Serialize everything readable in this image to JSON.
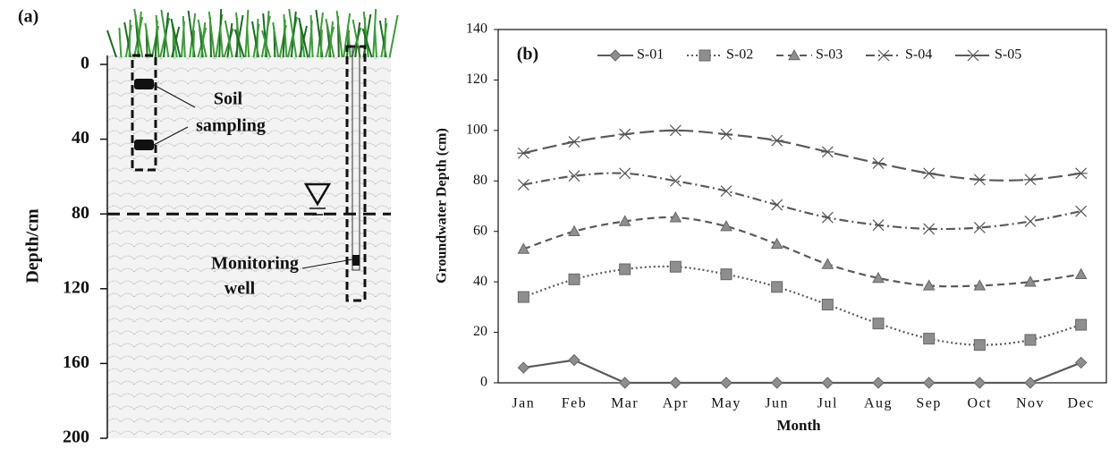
{
  "chart_data": [
    {
      "type": "diagram",
      "label": "(a)",
      "ylabel": "Depth/cm",
      "ylim": [
        0,
        200
      ],
      "inverted": true,
      "yticks": [
        0,
        40,
        80,
        120,
        160,
        200
      ],
      "water_table": 80,
      "annotations": [
        "Soil",
        "sampling",
        "Monitoring",
        "well"
      ]
    },
    {
      "type": "line",
      "label": "(b)",
      "xlabel": "Month",
      "ylabel": "Groundwater Depth (cm)",
      "categories": [
        "Jan",
        "Feb",
        "Mar",
        "Apr",
        "May",
        "Jun",
        "Jul",
        "Aug",
        "Sep",
        "Oct",
        "Nov",
        "Dec"
      ],
      "ylim": [
        0,
        140
      ],
      "yticks": [
        0,
        20,
        40,
        60,
        80,
        100,
        120,
        140
      ],
      "grid": false,
      "legend": "top",
      "series": [
        {
          "name": "S-01",
          "color": "#5a5a5a",
          "marker": "diamond",
          "dash": "solid",
          "values": [
            6,
            9,
            0,
            0,
            0,
            0,
            0,
            0,
            0,
            0,
            0,
            8
          ]
        },
        {
          "name": "S-02",
          "color": "#5a5a5a",
          "marker": "square",
          "dash": "dot",
          "values": [
            34,
            41,
            45,
            46,
            43,
            38,
            31,
            23.5,
            17.5,
            15,
            17,
            23
          ]
        },
        {
          "name": "S-03",
          "color": "#5a5a5a",
          "marker": "triangle",
          "dash": "dash",
          "values": [
            53,
            60,
            64,
            65.5,
            62,
            55,
            47,
            41.5,
            38.5,
            38.5,
            40,
            43
          ]
        },
        {
          "name": "S-04",
          "color": "#5a5a5a",
          "marker": "x",
          "dash": "dashdot",
          "values": [
            78.5,
            82,
            83,
            80,
            76,
            70.5,
            65.5,
            62.5,
            61,
            61.5,
            64,
            68
          ]
        },
        {
          "name": "S-05",
          "color": "#5a5a5a",
          "marker": "star",
          "dash": "longdash",
          "values": [
            91,
            95.5,
            98.5,
            100,
            98.5,
            96,
            91.5,
            87,
            83,
            80.5,
            80.5,
            83
          ]
        }
      ]
    }
  ]
}
